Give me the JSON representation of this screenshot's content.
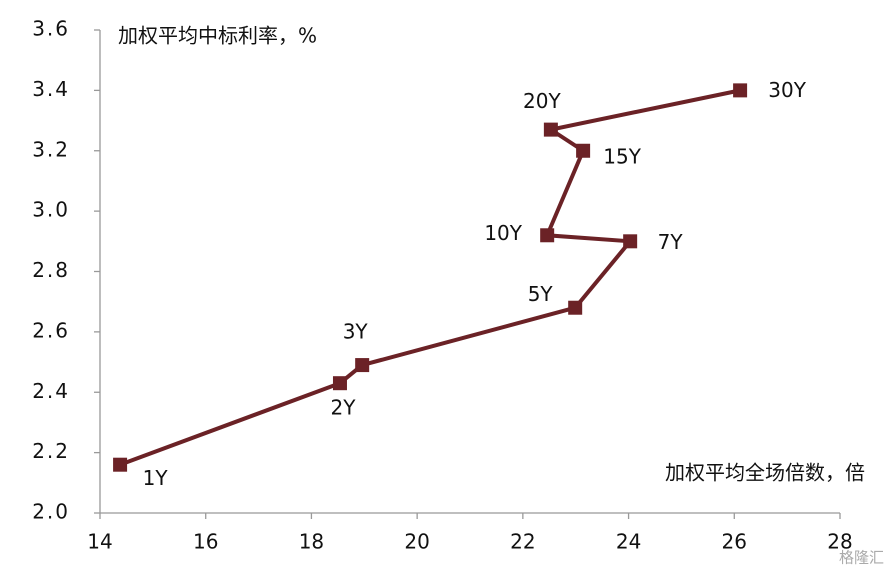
{
  "chart_data": {
    "type": "line",
    "y_label": "加权平均中标利率，%",
    "x_label": "加权平均全场倍数，倍",
    "watermark": "格隆汇",
    "series": [
      {
        "color": "#6b2226",
        "x": [
          14.38,
          18.54,
          18.96,
          22.99,
          24.03,
          22.46,
          23.14,
          22.53,
          26.11
        ],
        "values": [
          2.16,
          2.43,
          2.49,
          2.68,
          2.9,
          2.92,
          3.2,
          3.27,
          3.4
        ],
        "labels": [
          "1Y",
          "2Y",
          "3Y",
          "5Y",
          "7Y",
          "10Y",
          "15Y",
          "20Y",
          "30Y"
        ]
      }
    ],
    "xlim": [
      14,
      28
    ],
    "xticks": [
      14,
      16,
      18,
      20,
      22,
      24,
      26,
      28
    ],
    "ylim": [
      2.0,
      3.6
    ],
    "yticks": [
      {
        "value": 2.0,
        "label": "2.0"
      },
      2.2,
      2.4,
      2.6,
      2.8,
      {
        "value": 3.0,
        "label": "3.0"
      },
      3.2,
      3.4,
      3.6
    ]
  }
}
